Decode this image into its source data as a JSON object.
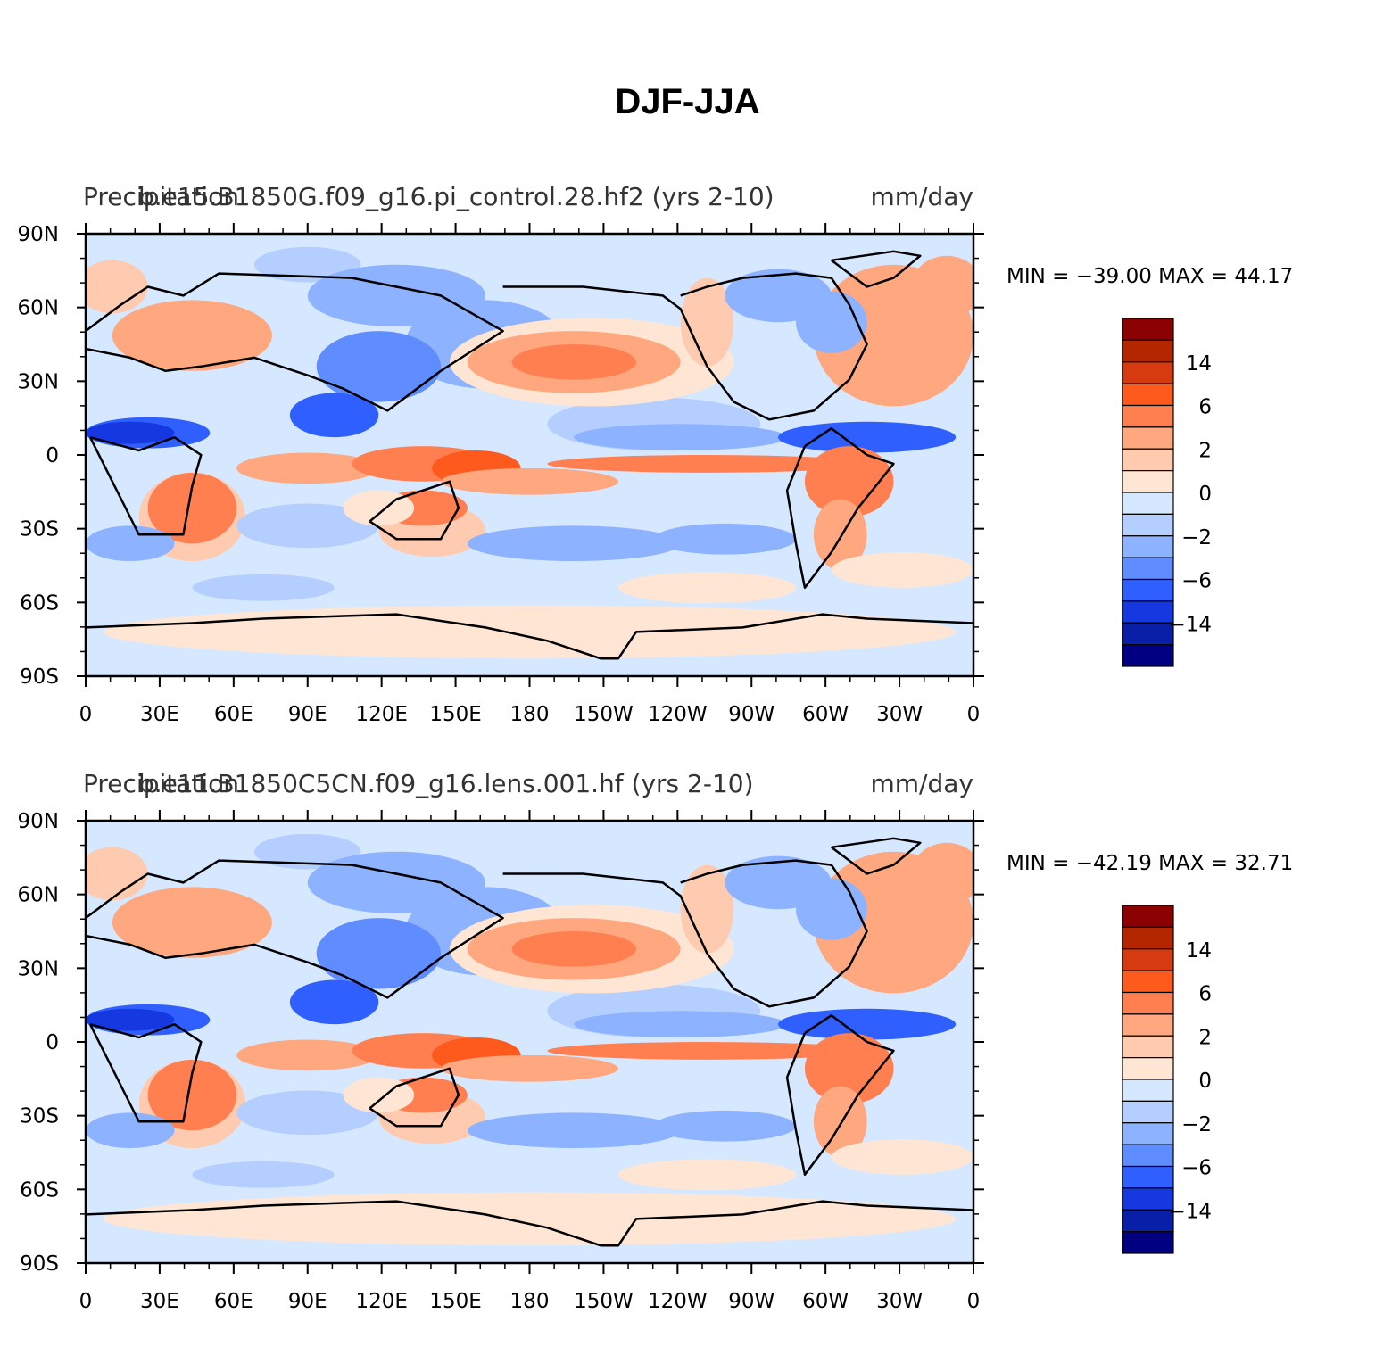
{
  "figure": {
    "title": "DJF-JJA"
  },
  "panels": [
    {
      "variable": "Precipitation",
      "units": "mm/day",
      "case_title": "b.e15.B1850G.f09_g16.pi_control.28.hf2 (yrs 2-10)",
      "stats": {
        "min_label": "MIN =",
        "min": "−39.00",
        "max_label": "MAX =",
        "max": "44.17"
      }
    },
    {
      "variable": "Precipitation",
      "units": "mm/day",
      "case_title": "b.e11.B1850C5CN.f09_g16.lens.001.hf (yrs 2-10)",
      "stats": {
        "min_label": "MIN =",
        "min": "−42.19",
        "max_label": "MAX =",
        "max": "32.71"
      }
    }
  ],
  "map_axes": {
    "lat_labels": [
      "90N",
      "60N",
      "30N",
      "0",
      "30S",
      "60S",
      "90S"
    ],
    "lon_labels": [
      "0",
      "30E",
      "60E",
      "90E",
      "120E",
      "150E",
      "180",
      "150W",
      "120W",
      "90W",
      "60W",
      "30W",
      "0"
    ]
  },
  "colorbar": {
    "labels": [
      "14",
      "6",
      "2",
      "0",
      "−2",
      "−6",
      "−14"
    ],
    "colors": [
      "#8b0000",
      "#b22600",
      "#d63a10",
      "#ff5a1e",
      "#ff7f50",
      "#ffa77f",
      "#ffcbb0",
      "#ffe6d4",
      "#d6e8ff",
      "#b4ceff",
      "#8db2ff",
      "#5f8cff",
      "#2f60ff",
      "#1538e0",
      "#0a1fa8",
      "#000080"
    ]
  }
}
